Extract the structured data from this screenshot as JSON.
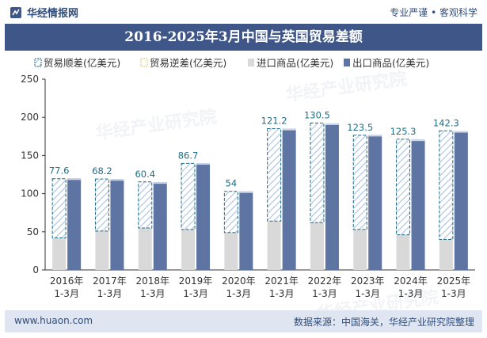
{
  "header": {
    "brand": "华经情报网",
    "tagline": "专业严谨 • 客观科学"
  },
  "footer": {
    "website": "www.huaon.com",
    "source": "数据来源：中国海关，华经产业研究院整理"
  },
  "watermark": "华经产业研究院",
  "colors": {
    "title_bg": "#3f5688",
    "import_bar": "#d9d9d9",
    "export_bar": "#5e74a3",
    "surplus_hatch": "#a9c1df",
    "surplus_border": "#1f6e86",
    "footer_bg": "#dfe6f1"
  },
  "chart_data": {
    "type": "bar",
    "title": "2016-2025年3月中国与英国贸易差额",
    "categories": [
      "2016年\n1-3月",
      "2017年\n1-3月",
      "2018年\n1-3月",
      "2019年\n1-3月",
      "2020年\n1-3月",
      "2021年\n1-3月",
      "2022年\n1-3月",
      "2023年\n1-3月",
      "2024年\n1-3月",
      "2025年\n1-3月"
    ],
    "legend": [
      "贸易顺差(亿美元)",
      "贸易逆差(亿美元)",
      "进口商品(亿美元)",
      "出口商品(亿美元)"
    ],
    "ylim": [
      0,
      250
    ],
    "yticks": [
      0,
      50,
      100,
      150,
      200,
      250
    ],
    "series": [
      {
        "name": "进口商品(亿美元)",
        "values": [
          42,
          51,
          55,
          53,
          49,
          64,
          62,
          53,
          46,
          40
        ]
      },
      {
        "name": "出口商品(亿美元)",
        "values": [
          120,
          119,
          115,
          140,
          103,
          185,
          192,
          177,
          171,
          182
        ]
      },
      {
        "name": "贸易顺差(亿美元)",
        "values": [
          77.6,
          68.2,
          60.4,
          86.7,
          54,
          121.2,
          130.5,
          123.5,
          125.3,
          142.3
        ]
      },
      {
        "name": "贸易逆差(亿美元)",
        "values": [
          0,
          0,
          0,
          0,
          0,
          0,
          0,
          0,
          0,
          0
        ]
      }
    ],
    "data_labels": [
      "77.6",
      "68.2",
      "60.4",
      "86.7",
      "54",
      "121.2",
      "130.5",
      "123.5",
      "125.3",
      "142.3"
    ]
  }
}
